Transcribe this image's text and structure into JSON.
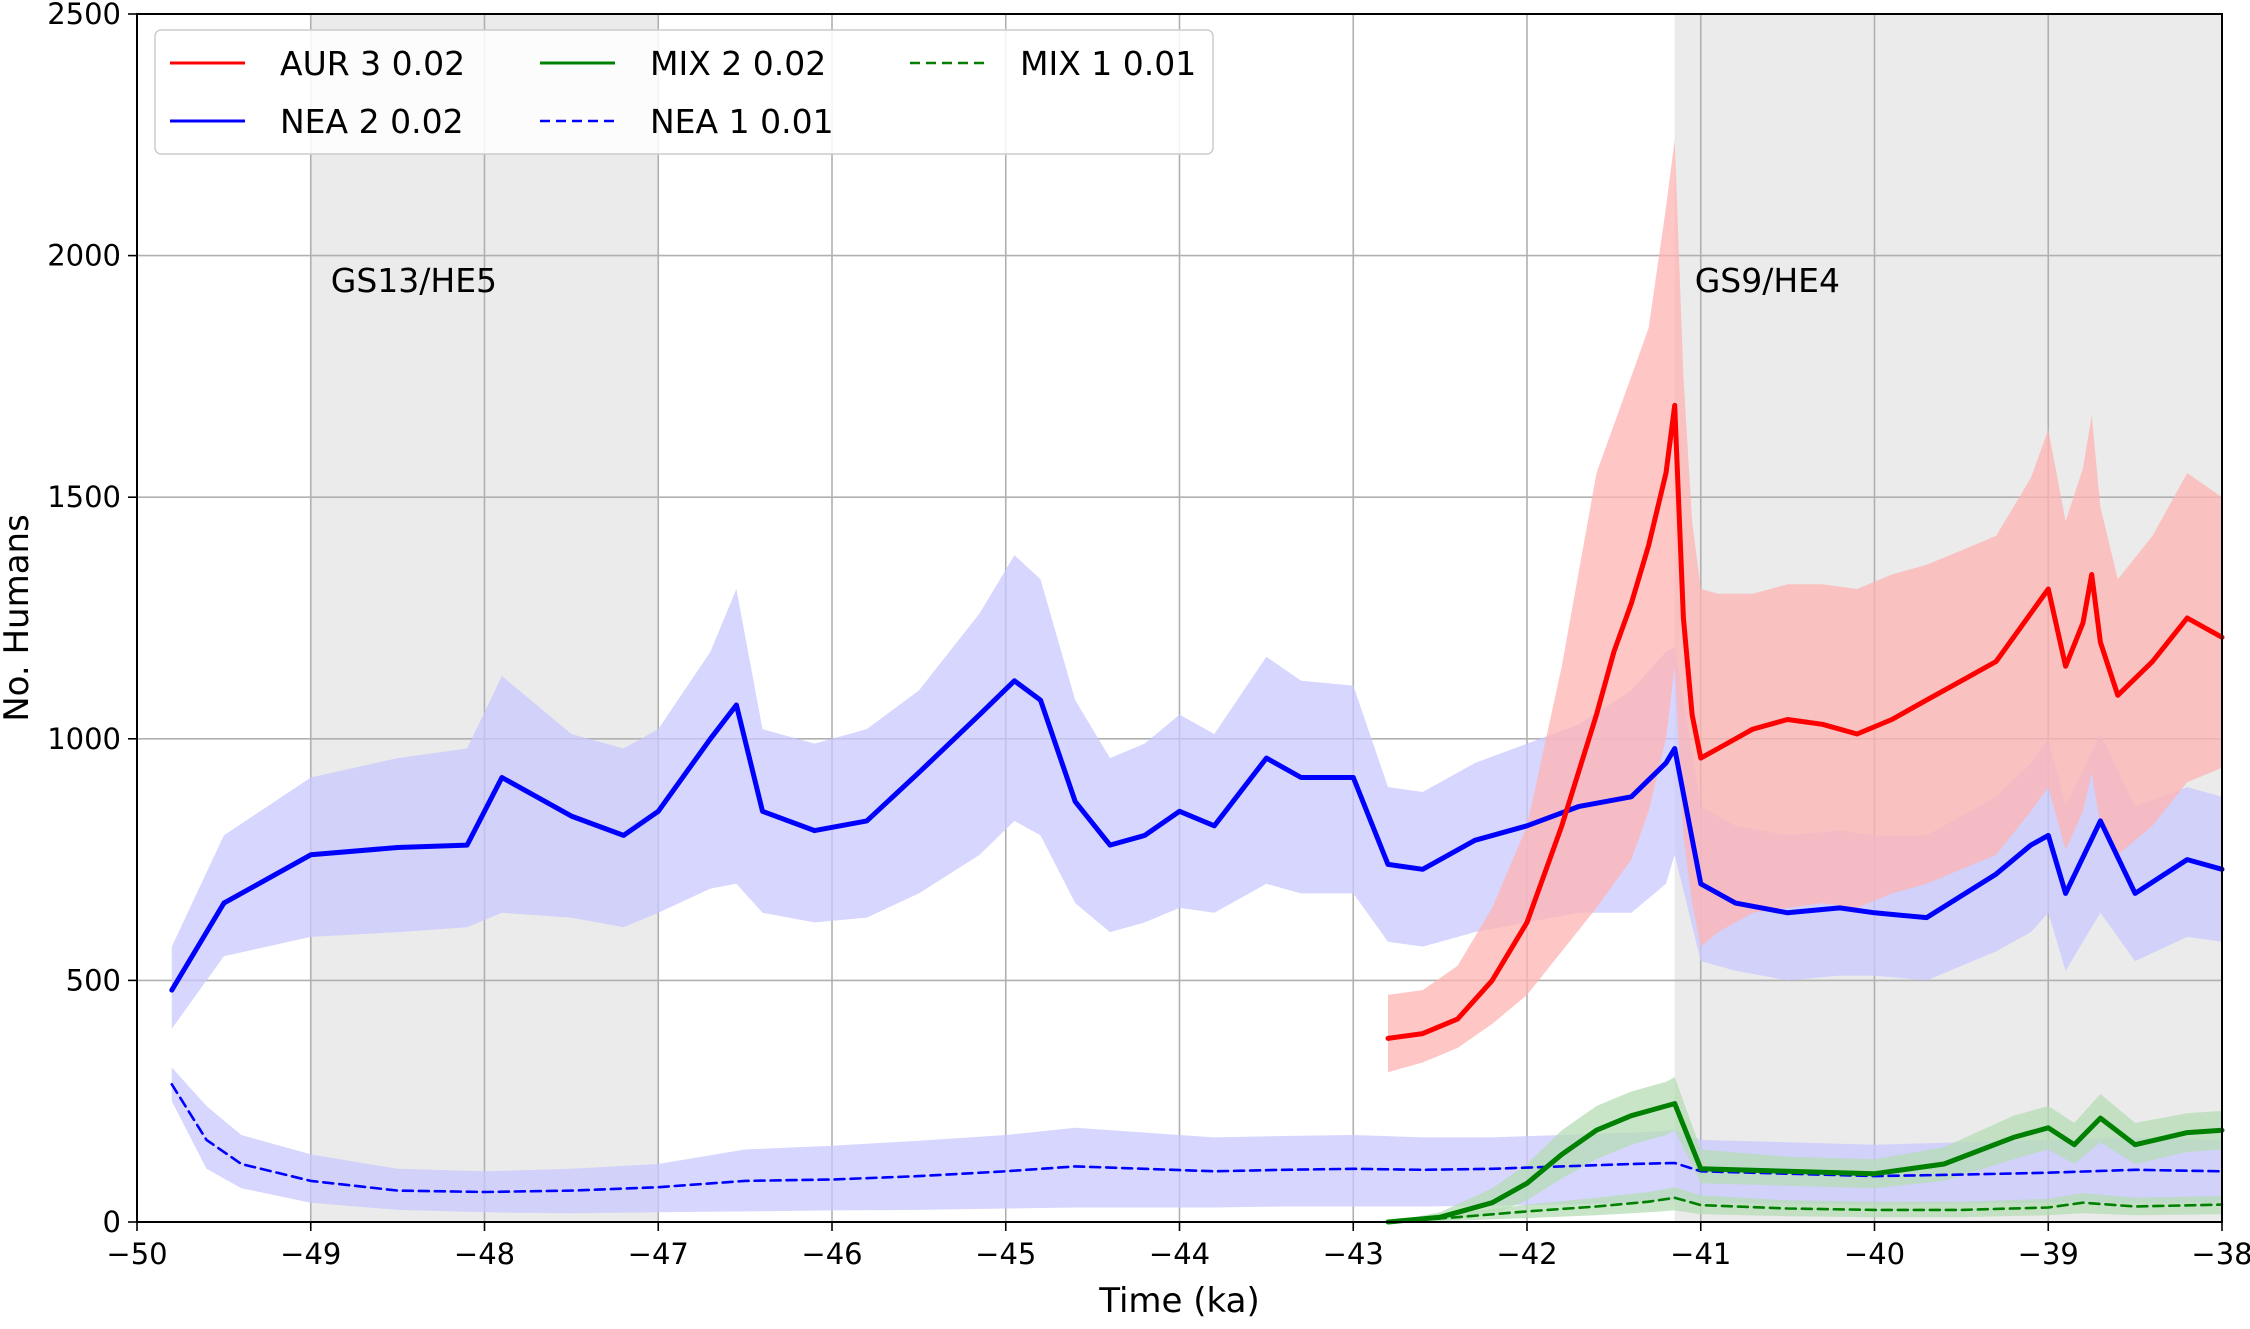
{
  "chart_data": {
    "type": "line",
    "title": "",
    "xlabel": "Time (ka)",
    "ylabel": "No. Humans",
    "xlim": [
      -50,
      -38
    ],
    "ylim": [
      0,
      2500
    ],
    "xticks": [
      -50,
      -49,
      -48,
      -47,
      -46,
      -45,
      -44,
      -43,
      -42,
      -41,
      -40,
      -39,
      -38
    ],
    "yticks": [
      0,
      500,
      1000,
      1500,
      2000,
      2500
    ],
    "xtick_labels": [
      "−50",
      "−49",
      "−48",
      "−47",
      "−46",
      "−45",
      "−44",
      "−43",
      "−42",
      "−41",
      "−40",
      "−39",
      "−38"
    ],
    "ytick_labels": [
      "0",
      "500",
      "1000",
      "1500",
      "2000",
      "2500"
    ],
    "grid": true,
    "legend_position": "top-left",
    "legend_columns": 3,
    "shaded_periods": [
      {
        "label": "GS13/HE5",
        "x_start": -49.0,
        "x_end": -47.0,
        "color": "#ebebeb"
      },
      {
        "label": "GS9/HE4",
        "x_start": -41.15,
        "x_end": -38.0,
        "color": "#ebebeb"
      }
    ],
    "series": [
      {
        "name": "AUR 3 0.02",
        "color": "#ff0000",
        "band_color": "#ffb3b3",
        "style": "solid",
        "x": [
          -42.8,
          -42.6,
          -42.4,
          -42.2,
          -42.0,
          -41.8,
          -41.6,
          -41.5,
          -41.4,
          -41.3,
          -41.2,
          -41.15,
          -41.1,
          -41.05,
          -41.0,
          -40.9,
          -40.7,
          -40.5,
          -40.3,
          -40.1,
          -39.9,
          -39.7,
          -39.5,
          -39.3,
          -39.1,
          -39.0,
          -38.9,
          -38.8,
          -38.75,
          -38.7,
          -38.6,
          -38.4,
          -38.2,
          -38.0
        ],
        "y": [
          380,
          390,
          420,
          500,
          620,
          820,
          1050,
          1180,
          1280,
          1400,
          1550,
          1690,
          1250,
          1050,
          960,
          980,
          1020,
          1040,
          1030,
          1010,
          1040,
          1080,
          1120,
          1160,
          1260,
          1310,
          1150,
          1240,
          1340,
          1200,
          1090,
          1160,
          1250,
          1210
        ],
        "lower": [
          310,
          330,
          360,
          410,
          470,
          560,
          650,
          700,
          750,
          850,
          1000,
          1150,
          800,
          660,
          570,
          600,
          640,
          650,
          660,
          650,
          680,
          700,
          730,
          760,
          850,
          900,
          770,
          850,
          930,
          820,
          760,
          820,
          910,
          940
        ],
        "upper": [
          470,
          480,
          530,
          650,
          820,
          1150,
          1550,
          1650,
          1750,
          1850,
          2100,
          2240,
          1750,
          1450,
          1310,
          1300,
          1300,
          1320,
          1320,
          1310,
          1340,
          1360,
          1390,
          1420,
          1540,
          1640,
          1450,
          1560,
          1670,
          1480,
          1330,
          1420,
          1550,
          1500
        ]
      },
      {
        "name": "NEA 2 0.02",
        "color": "#0000ff",
        "band_color": "#c8c8ff",
        "style": "solid",
        "x": [
          -49.8,
          -49.5,
          -49.0,
          -48.5,
          -48.1,
          -47.9,
          -47.5,
          -47.2,
          -47.0,
          -46.7,
          -46.55,
          -46.4,
          -46.1,
          -45.8,
          -45.5,
          -45.15,
          -44.95,
          -44.8,
          -44.6,
          -44.4,
          -44.2,
          -44.0,
          -43.8,
          -43.5,
          -43.3,
          -43.0,
          -42.8,
          -42.6,
          -42.3,
          -42.0,
          -41.7,
          -41.4,
          -41.2,
          -41.15,
          -41.0,
          -40.8,
          -40.5,
          -40.2,
          -40.0,
          -39.7,
          -39.3,
          -39.1,
          -39.0,
          -38.9,
          -38.7,
          -38.5,
          -38.2,
          -38.0
        ],
        "y": [
          480,
          660,
          760,
          775,
          780,
          920,
          840,
          800,
          850,
          1000,
          1070,
          850,
          810,
          830,
          930,
          1050,
          1120,
          1080,
          870,
          780,
          800,
          850,
          820,
          960,
          920,
          920,
          740,
          730,
          790,
          820,
          860,
          880,
          950,
          980,
          700,
          660,
          640,
          650,
          640,
          630,
          720,
          780,
          800,
          680,
          830,
          680,
          750,
          730
        ],
        "lower": [
          400,
          550,
          590,
          600,
          610,
          640,
          630,
          610,
          640,
          690,
          700,
          640,
          620,
          630,
          680,
          760,
          830,
          800,
          660,
          600,
          620,
          650,
          640,
          700,
          680,
          680,
          580,
          570,
          600,
          620,
          640,
          640,
          700,
          760,
          540,
          520,
          500,
          510,
          510,
          500,
          560,
          600,
          640,
          520,
          640,
          540,
          590,
          580
        ],
        "upper": [
          570,
          800,
          920,
          960,
          980,
          1130,
          1010,
          980,
          1020,
          1180,
          1310,
          1020,
          990,
          1020,
          1100,
          1260,
          1380,
          1330,
          1080,
          960,
          990,
          1050,
          1010,
          1170,
          1120,
          1110,
          900,
          890,
          950,
          990,
          1030,
          1100,
          1180,
          1190,
          860,
          820,
          800,
          810,
          800,
          800,
          880,
          950,
          1000,
          860,
          1010,
          860,
          900,
          880
        ]
      },
      {
        "name": "MIX 2 0.02",
        "color": "#008000",
        "band_color": "#b6dcb6",
        "style": "solid",
        "x": [
          -42.8,
          -42.5,
          -42.2,
          -42.0,
          -41.8,
          -41.6,
          -41.4,
          -41.2,
          -41.15,
          -41.0,
          -40.5,
          -40.0,
          -39.6,
          -39.2,
          -39.0,
          -38.85,
          -38.7,
          -38.5,
          -38.2,
          -38.0
        ],
        "y": [
          0,
          10,
          40,
          80,
          140,
          190,
          220,
          240,
          245,
          110,
          105,
          100,
          120,
          175,
          195,
          160,
          215,
          160,
          185,
          190
        ],
        "lower": [
          0,
          2,
          15,
          45,
          90,
          130,
          160,
          180,
          190,
          80,
          75,
          70,
          85,
          130,
          150,
          120,
          165,
          120,
          145,
          150
        ],
        "upper": [
          0,
          20,
          70,
          120,
          190,
          240,
          270,
          290,
          300,
          150,
          135,
          130,
          155,
          220,
          240,
          205,
          265,
          205,
          225,
          230
        ]
      },
      {
        "name": "NEA 1 0.01",
        "color": "#0000ff",
        "band_color": "#c8c8ff",
        "style": "dashed",
        "x": [
          -49.8,
          -49.6,
          -49.4,
          -49.0,
          -48.5,
          -48.0,
          -47.5,
          -47.0,
          -46.5,
          -46.0,
          -45.5,
          -45.0,
          -44.6,
          -44.2,
          -43.8,
          -43.4,
          -43.0,
          -42.6,
          -42.2,
          -41.8,
          -41.4,
          -41.15,
          -41.0,
          -40.5,
          -40.0,
          -39.5,
          -39.0,
          -38.5,
          -38.0
        ],
        "y": [
          285,
          170,
          120,
          85,
          65,
          62,
          65,
          72,
          85,
          88,
          95,
          105,
          115,
          110,
          105,
          108,
          110,
          108,
          110,
          115,
          120,
          122,
          105,
          100,
          95,
          98,
          102,
          108,
          105
        ],
        "lower": [
          250,
          110,
          70,
          40,
          25,
          20,
          18,
          20,
          22,
          24,
          25,
          28,
          30,
          30,
          30,
          32,
          32,
          32,
          34,
          36,
          40,
          45,
          40,
          38,
          36,
          38,
          40,
          40,
          40
        ],
        "upper": [
          320,
          240,
          180,
          140,
          110,
          105,
          110,
          120,
          150,
          158,
          168,
          180,
          195,
          185,
          175,
          178,
          180,
          175,
          175,
          180,
          185,
          190,
          170,
          165,
          160,
          165,
          170,
          175,
          170
        ]
      },
      {
        "name": "MIX 1 0.01",
        "color": "#008000",
        "band_color": "#b6dcb6",
        "style": "dashed",
        "x": [
          -42.8,
          -42.4,
          -42.0,
          -41.6,
          -41.3,
          -41.15,
          -41.0,
          -40.5,
          -40.0,
          -39.5,
          -39.0,
          -38.8,
          -38.5,
          -38.0
        ],
        "y": [
          0,
          10,
          22,
          32,
          42,
          50,
          35,
          28,
          25,
          25,
          30,
          40,
          32,
          36
        ],
        "lower": [
          0,
          3,
          8,
          14,
          20,
          24,
          16,
          12,
          10,
          10,
          14,
          18,
          14,
          16
        ],
        "upper": [
          0,
          18,
          36,
          50,
          62,
          72,
          55,
          45,
          42,
          42,
          48,
          60,
          50,
          54
        ]
      }
    ]
  }
}
